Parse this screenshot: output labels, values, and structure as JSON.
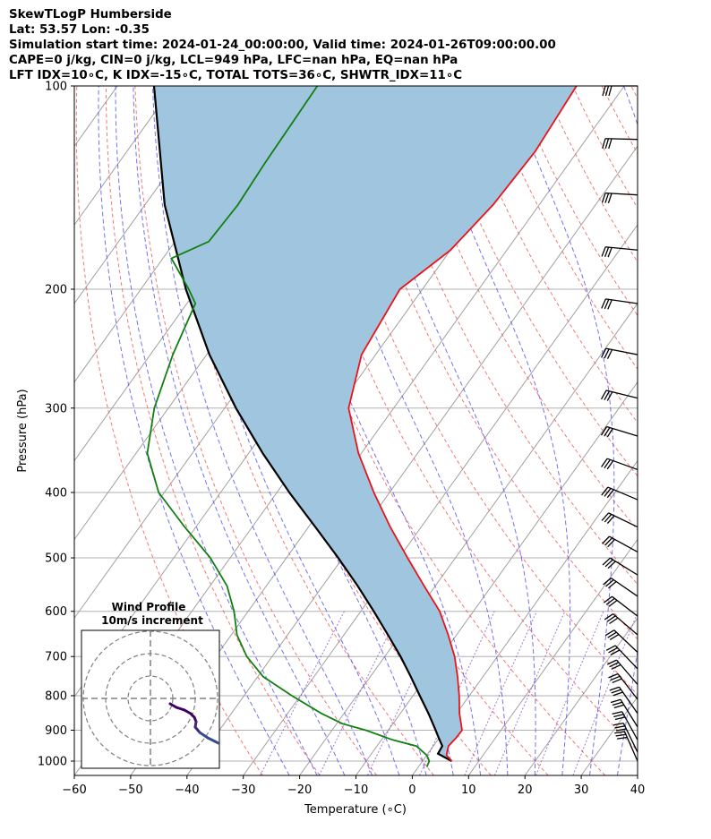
{
  "header": {
    "line1": "SkewTLogP Humberside",
    "line2": "Lat: 53.57   Lon: -0.35",
    "line3": "Simulation start time: 2024-01-24_00:00:00, Valid time: 2024-01-26T09:00:00.00",
    "line4": "CAPE=0 j/kg, CIN=0 j/kg, LCL=949 hPa, LFC=nan hPa, EQ=nan hPa",
    "line5": "LFT IDX=10∘C, K IDX=-15∘C, TOTAL TOTS=36∘C, SHWTR_IDX=11∘C"
  },
  "chart_data": {
    "type": "line",
    "subtype": "skew-t log-p",
    "xlabel": "Temperature (∘C)",
    "ylabel": "Pressure (hPa)",
    "xlim": [
      -60,
      40
    ],
    "ylim": [
      1050,
      100
    ],
    "x_ticks": [
      "−60",
      "−50",
      "−40",
      "−30",
      "−20",
      "−10",
      "0",
      "10",
      "20",
      "30",
      "40"
    ],
    "y_ticks": [
      100,
      200,
      300,
      400,
      500,
      600,
      700,
      800,
      900,
      1000
    ],
    "grid": true,
    "colors": {
      "temperature": "#e8141b",
      "dewpoint": "#118011",
      "parcel": "#000000",
      "cape_fill": "#a0c5df",
      "dry_adiabat": "#f06060",
      "moist_adiabat": "#4f4ff0",
      "isotherm": "#a0a0a0",
      "mixing_ratio": "#8040c0"
    },
    "series": [
      {
        "key": "temperature",
        "pressure": [
          1000,
          980,
          950,
          925,
          900,
          850,
          800,
          750,
          700,
          650,
          600,
          550,
          500,
          450,
          400,
          350,
          300,
          250,
          200,
          175,
          150,
          125,
          100
        ],
        "values": [
          5.2,
          3.5,
          2.7,
          3.0,
          3.1,
          0.5,
          -1.8,
          -4.5,
          -7.6,
          -11.5,
          -16.0,
          -22.0,
          -28.5,
          -35.5,
          -42.8,
          -50.5,
          -58.0,
          -62.5,
          -64.0,
          -60.0,
          -58.2,
          -57.5,
          -58.5
        ]
      },
      {
        "key": "dewpoint",
        "pressure": [
          1020,
          1000,
          980,
          950,
          930,
          900,
          880,
          850,
          800,
          750,
          700,
          650,
          600,
          550,
          500,
          450,
          400,
          350,
          300,
          250,
          210,
          200,
          180,
          170,
          150,
          130,
          100
        ],
        "values": [
          1.5,
          1.2,
          0.0,
          -3.0,
          -8.0,
          -14.0,
          -19.0,
          -24.0,
          -31.5,
          -39.0,
          -44.5,
          -49.0,
          -52.5,
          -57.0,
          -63.5,
          -72.0,
          -81.0,
          -88.0,
          -92.5,
          -96.0,
          -98.5,
          -101.5,
          -108.5,
          -104.0,
          -103.5,
          -104.0,
          -104.5
        ]
      },
      {
        "key": "parcel",
        "pressure": [
          1000,
          975,
          950,
          925,
          900,
          850,
          800,
          750,
          700,
          650,
          600,
          550,
          500,
          450,
          400,
          350,
          300,
          250,
          200,
          150,
          100
        ],
        "values": [
          5.2,
          1.8,
          1.6,
          0.0,
          -1.6,
          -5.0,
          -8.8,
          -12.8,
          -17.2,
          -22.2,
          -27.7,
          -33.8,
          -40.8,
          -48.8,
          -57.8,
          -67.5,
          -78.0,
          -89.5,
          -102.0,
          -116.5,
          -133.5
        ]
      }
    ],
    "wind_barbs": {
      "pressure": [
        1000,
        970,
        930,
        890,
        850,
        810,
        770,
        730,
        690,
        650,
        610,
        570,
        530,
        490,
        450,
        410,
        370,
        330,
        290,
        250,
        210,
        175,
        145,
        120,
        100
      ],
      "flags": 3,
      "note_units": "m/s"
    },
    "inset": {
      "title": "Wind Profile",
      "subtitle": "10m/s increment",
      "rings": 3
    }
  }
}
